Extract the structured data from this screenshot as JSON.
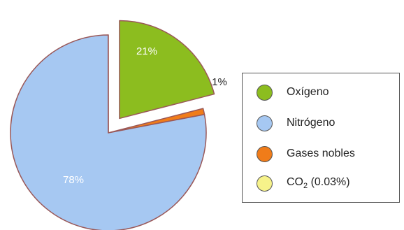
{
  "chart_data": {
    "type": "pie",
    "slices": [
      {
        "label": "Oxígeno",
        "value": 21,
        "data_label": "21%",
        "color": "#8cbd1f",
        "exploded": true
      },
      {
        "label": "Gases nobles",
        "value": 1,
        "data_label": "1%",
        "color": "#f07c19",
        "exploded": false
      },
      {
        "label": "Nitrógeno",
        "value": 78,
        "data_label": "78%",
        "color": "#a6c8f2",
        "exploded": false
      },
      {
        "label": "CO2 (0.03%)",
        "value": 0.03,
        "data_label": "",
        "color": "#f6f28a",
        "exploded": false
      }
    ],
    "legend": {
      "position": "right",
      "entries": [
        {
          "label": "Oxígeno",
          "color": "#8cbd1f"
        },
        {
          "label": "Nitrógeno",
          "color": "#a6c8f2"
        },
        {
          "label": "Gases nobles",
          "color": "#f07c19"
        },
        {
          "label_main": "CO",
          "label_sub": "2",
          "label_rest": " (0.03%)",
          "color": "#f6f28a"
        }
      ]
    },
    "outline_color": "#9a5858"
  }
}
